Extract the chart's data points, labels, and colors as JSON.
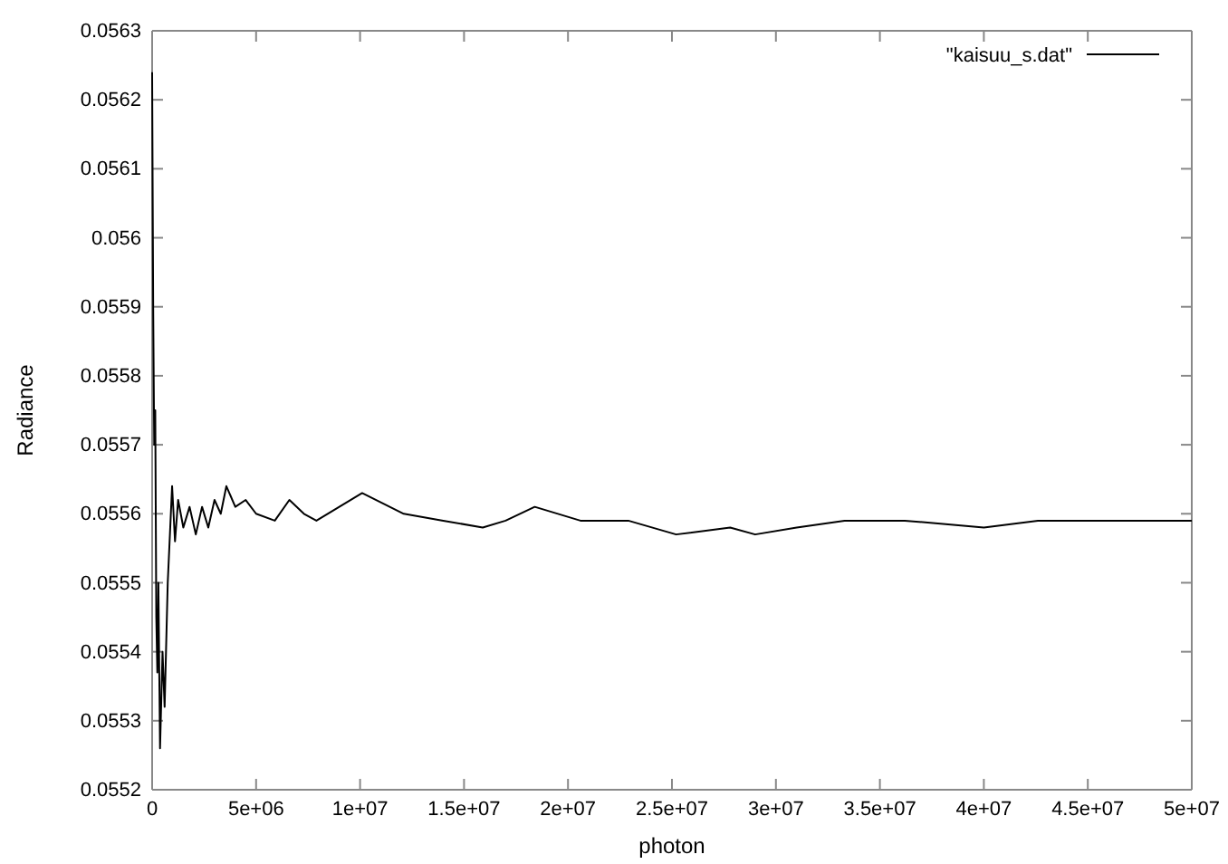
{
  "chart_data": {
    "type": "line",
    "xlabel": "photon",
    "ylabel": "Radiance",
    "xlim": [
      0,
      50000000
    ],
    "ylim": [
      0.0552,
      0.0563
    ],
    "xticks": [
      0,
      {
        "value": 5000000,
        "label": "5e+06"
      },
      {
        "value": 10000000,
        "label": "1e+07"
      },
      {
        "value": 15000000,
        "label": "1.5e+07"
      },
      {
        "value": 20000000,
        "label": "2e+07"
      },
      {
        "value": 25000000,
        "label": "2.5e+07"
      },
      {
        "value": 30000000,
        "label": "3e+07"
      },
      {
        "value": 35000000,
        "label": "3.5e+07"
      },
      {
        "value": 40000000,
        "label": "4e+07"
      },
      {
        "value": 45000000,
        "label": "4.5e+07"
      },
      {
        "value": 50000000,
        "label": "5e+07"
      }
    ],
    "yticks": [
      0.0552,
      0.0553,
      0.0554,
      0.0555,
      0.0556,
      0.0557,
      0.0558,
      0.0559,
      0.056,
      0.0561,
      0.0562,
      0.0563
    ],
    "grid": false,
    "legend": "top right",
    "marker": "none",
    "line_style": "solid",
    "series": [
      {
        "name": "\"kaisuu_s.dat\"",
        "color": "#000000",
        "x": [
          0,
          50000,
          100000,
          150000,
          200000,
          250000,
          300000,
          380000,
          500000,
          600000,
          750000,
          960000,
          1100000,
          1250000,
          1500000,
          1800000,
          2100000,
          2400000,
          2700000,
          3000000,
          3300000,
          3570000,
          4000000,
          4500000,
          5000000,
          5900000,
          6600000,
          7300000,
          7900000,
          9000000,
          10100000,
          12100000,
          14000000,
          15900000,
          17000000,
          18400000,
          20600000,
          22900000,
          25200000,
          27800000,
          29000000,
          31000000,
          33300000,
          36200000,
          40000000,
          42600000,
          45500000,
          50000000
        ],
        "values": [
          0.05624,
          0.0559,
          0.0557,
          0.05575,
          0.05545,
          0.05537,
          0.0555,
          0.05526,
          0.0554,
          0.05532,
          0.0555,
          0.05564,
          0.05556,
          0.05562,
          0.05558,
          0.05561,
          0.05557,
          0.05561,
          0.05558,
          0.05562,
          0.0556,
          0.05564,
          0.05561,
          0.05562,
          0.0556,
          0.05559,
          0.05562,
          0.0556,
          0.05559,
          0.05561,
          0.05563,
          0.0556,
          0.05559,
          0.05558,
          0.05559,
          0.05561,
          0.05559,
          0.05559,
          0.05557,
          0.05558,
          0.05557,
          0.05558,
          0.05559,
          0.05559,
          0.05558,
          0.05559,
          0.05559,
          0.05559
        ]
      }
    ]
  }
}
